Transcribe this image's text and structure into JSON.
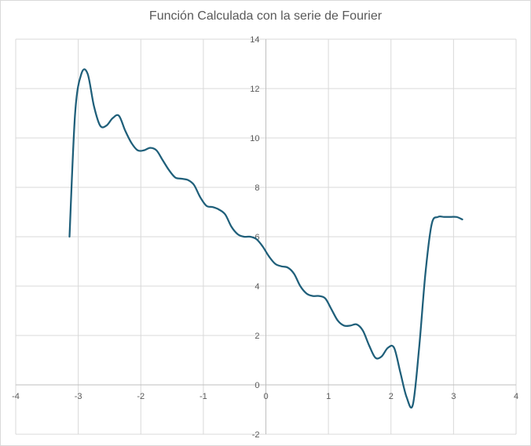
{
  "chart_data": {
    "type": "line",
    "title": "Función Calculada con la serie de Fourier",
    "xlabel": "",
    "ylabel": "",
    "xlim": [
      -4,
      4
    ],
    "ylim": [
      -2,
      14
    ],
    "grid": true,
    "legend": "none",
    "x_ticks": [
      "-4",
      "-3",
      "-2",
      "-1",
      "0",
      "1",
      "2",
      "3",
      "4"
    ],
    "y_ticks": [
      "-2",
      "0",
      "2",
      "4",
      "6",
      "8",
      "10",
      "12",
      "14"
    ],
    "series": [
      {
        "color": "#1f5f7a",
        "x": [
          -3.14,
          -3.05,
          -2.95,
          -2.85,
          -2.75,
          -2.65,
          -2.55,
          -2.45,
          -2.35,
          -2.25,
          -2.15,
          -2.05,
          -1.95,
          -1.85,
          -1.75,
          -1.65,
          -1.55,
          -1.45,
          -1.35,
          -1.25,
          -1.15,
          -1.05,
          -0.95,
          -0.85,
          -0.75,
          -0.65,
          -0.55,
          -0.45,
          -0.35,
          -0.25,
          -0.15,
          -0.05,
          0.05,
          0.15,
          0.25,
          0.35,
          0.45,
          0.55,
          0.65,
          0.75,
          0.85,
          0.95,
          1.05,
          1.15,
          1.25,
          1.35,
          1.45,
          1.55,
          1.65,
          1.75,
          1.85,
          1.95,
          2.05,
          2.15,
          2.25,
          2.35,
          2.45,
          2.55,
          2.65,
          2.75,
          2.85,
          2.95,
          3.05,
          3.14
        ],
        "y": [
          6.0,
          11.0,
          12.6,
          12.6,
          11.3,
          10.5,
          10.5,
          10.8,
          10.9,
          10.3,
          9.8,
          9.5,
          9.5,
          9.6,
          9.5,
          9.1,
          8.7,
          8.4,
          8.35,
          8.3,
          8.1,
          7.6,
          7.25,
          7.2,
          7.1,
          6.9,
          6.4,
          6.1,
          6.0,
          6.0,
          5.9,
          5.6,
          5.2,
          4.9,
          4.8,
          4.75,
          4.5,
          4.0,
          3.7,
          3.6,
          3.6,
          3.5,
          3.05,
          2.6,
          2.4,
          2.4,
          2.45,
          2.2,
          1.6,
          1.1,
          1.15,
          1.5,
          1.5,
          0.5,
          -0.5,
          -0.8,
          1.5,
          4.5,
          6.5,
          6.8,
          6.8,
          6.8,
          6.8,
          6.7
        ]
      }
    ]
  }
}
